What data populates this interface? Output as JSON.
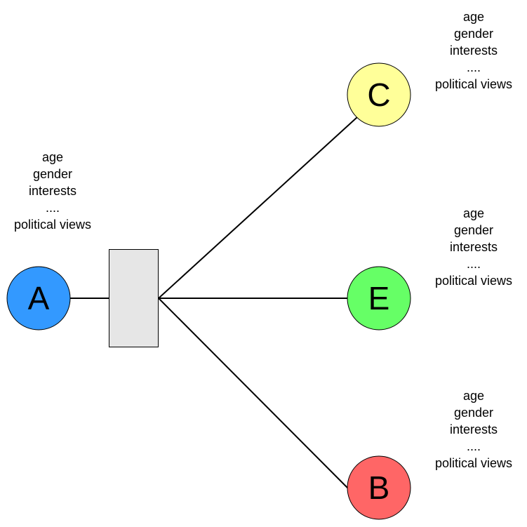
{
  "nodes": {
    "A": {
      "label": "A",
      "color": "#3399ff"
    },
    "C": {
      "label": "C",
      "color": "#ffff99"
    },
    "E": {
      "label": "E",
      "color": "#66ff66"
    },
    "B": {
      "label": "B",
      "color": "#ff6666"
    }
  },
  "hub": {
    "color": "#e6e6e6"
  },
  "attributes": {
    "A": [
      "age",
      "gender",
      "interests",
      "....",
      "political views"
    ],
    "C": [
      "age",
      "gender",
      "interests",
      "....",
      "political views"
    ],
    "E": [
      "age",
      "gender",
      "interests",
      "....",
      "political views"
    ],
    "B": [
      "age",
      "gender",
      "interests",
      "....",
      "political views"
    ]
  }
}
